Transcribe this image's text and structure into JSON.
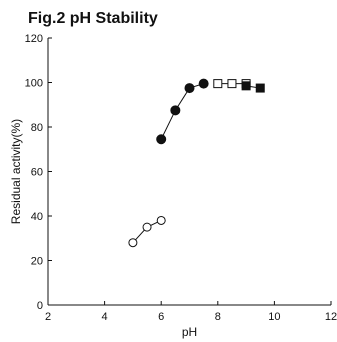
{
  "chart_data": {
    "type": "scatter",
    "title": "Fig.2 pH Stability",
    "xlabel": "pH",
    "ylabel": "Residual activity(%)",
    "xlim": [
      2,
      12
    ],
    "ylim": [
      0,
      120
    ],
    "xticks": [
      "2",
      "4",
      "6",
      "8",
      "10",
      "12"
    ],
    "yticks": [
      "0",
      "20",
      "40",
      "60",
      "80",
      "100",
      "120"
    ],
    "grid": false,
    "legend": "none",
    "series": [
      {
        "marker": "filled-circle",
        "connected": true,
        "x": [
          6.0,
          6.5,
          7.0,
          7.5
        ],
        "y": [
          74.5,
          87.5,
          97.5,
          99.5
        ]
      },
      {
        "marker": "open-circle",
        "connected": true,
        "x": [
          5.0,
          5.5,
          6.0
        ],
        "y": [
          28,
          35,
          38
        ]
      },
      {
        "marker": "open-square",
        "connected": true,
        "x": [
          8.0,
          8.5,
          9.0
        ],
        "y": [
          99.5,
          99.5,
          99.5
        ]
      },
      {
        "marker": "filled-square",
        "connected": true,
        "x": [
          9.0,
          9.5
        ],
        "y": [
          98.5,
          97.5
        ]
      }
    ],
    "colors": {
      "marker": "#111111",
      "line": "#111111",
      "axis": "#111111"
    }
  }
}
